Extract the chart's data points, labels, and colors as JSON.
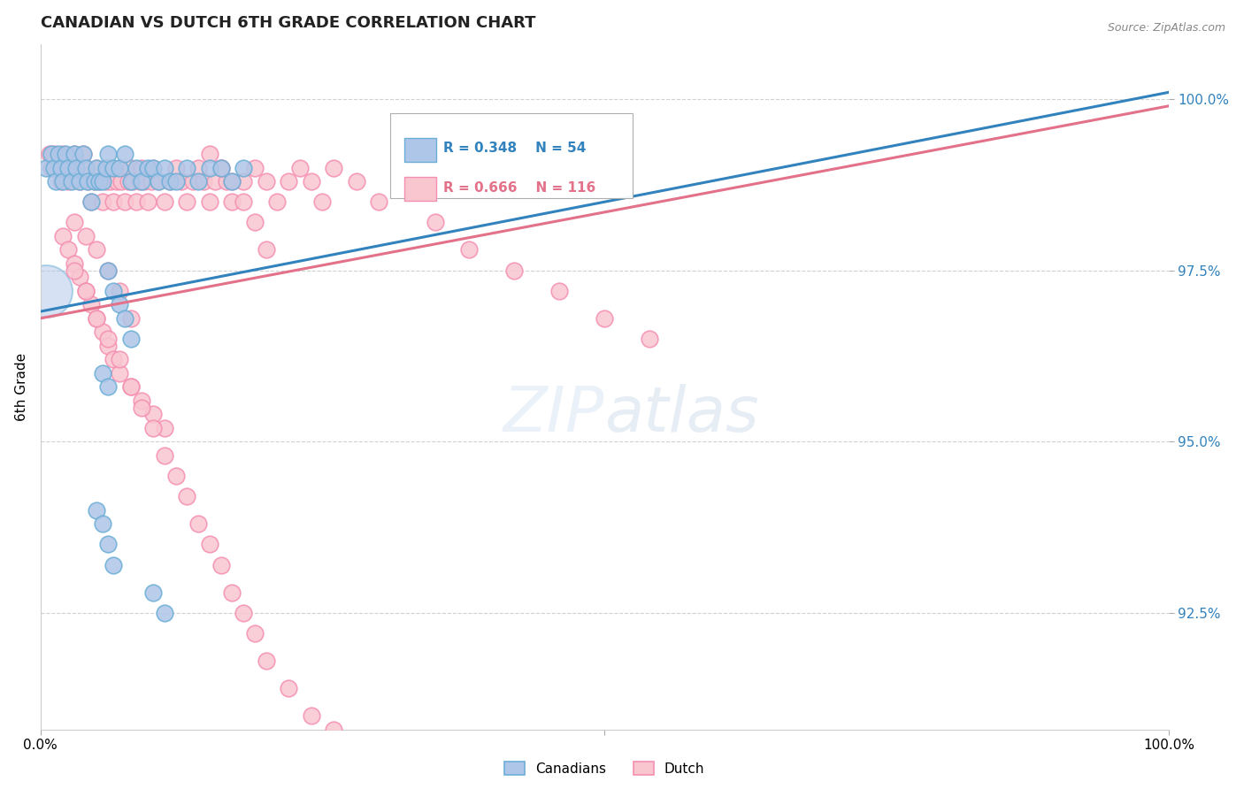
{
  "title": "CANADIAN VS DUTCH 6TH GRADE CORRELATION CHART",
  "source": "Source: ZipAtlas.com",
  "ylabel": "6th Grade",
  "xlim": [
    0.0,
    1.0
  ],
  "ylim": [
    0.908,
    1.008
  ],
  "yticks": [
    0.925,
    0.95,
    0.975,
    1.0
  ],
  "ytick_labels": [
    "92.5%",
    "95.0%",
    "97.5%",
    "100.0%"
  ],
  "xticks": [
    0.0,
    0.5,
    1.0
  ],
  "xtick_labels": [
    "0.0%",
    "",
    "100.0%"
  ],
  "canadian_color": "#aec6e8",
  "canadian_edge": "#6baed6",
  "dutch_color": "#f9c6d0",
  "dutch_edge": "#f48fb1",
  "canadian_line_color": "#3182bd",
  "dutch_line_color": "#e3718a",
  "canadian_R": 0.348,
  "canadian_N": 54,
  "dutch_R": 0.666,
  "dutch_N": 116,
  "legend_label_canadian": "Canadians",
  "legend_label_dutch": "Dutch",
  "canadians_x": [
    0.005,
    0.01,
    0.012,
    0.014,
    0.016,
    0.018,
    0.02,
    0.022,
    0.025,
    0.028,
    0.03,
    0.032,
    0.035,
    0.038,
    0.04,
    0.042,
    0.045,
    0.048,
    0.05,
    0.052,
    0.055,
    0.058,
    0.06,
    0.065,
    0.07,
    0.075,
    0.08,
    0.085,
    0.09,
    0.095,
    0.1,
    0.105,
    0.11,
    0.115,
    0.12,
    0.13,
    0.14,
    0.15,
    0.16,
    0.17,
    0.18,
    0.06,
    0.065,
    0.07,
    0.075,
    0.08,
    0.055,
    0.06,
    0.05,
    0.055,
    0.06,
    0.065,
    0.1,
    0.11
  ],
  "canadians_y": [
    0.99,
    0.992,
    0.99,
    0.988,
    0.992,
    0.99,
    0.988,
    0.992,
    0.99,
    0.988,
    0.992,
    0.99,
    0.988,
    0.992,
    0.99,
    0.988,
    0.985,
    0.988,
    0.99,
    0.988,
    0.988,
    0.99,
    0.992,
    0.99,
    0.99,
    0.992,
    0.988,
    0.99,
    0.988,
    0.99,
    0.99,
    0.988,
    0.99,
    0.988,
    0.988,
    0.99,
    0.988,
    0.99,
    0.99,
    0.988,
    0.99,
    0.975,
    0.972,
    0.97,
    0.968,
    0.965,
    0.96,
    0.958,
    0.94,
    0.938,
    0.935,
    0.932,
    0.928,
    0.925
  ],
  "canadians_size": [
    150,
    150,
    150,
    150,
    150,
    150,
    150,
    150,
    150,
    150,
    150,
    150,
    150,
    150,
    150,
    150,
    150,
    150,
    150,
    150,
    150,
    150,
    150,
    150,
    150,
    150,
    150,
    150,
    150,
    150,
    150,
    150,
    150,
    150,
    150,
    150,
    150,
    150,
    150,
    150,
    150,
    150,
    150,
    150,
    150,
    150,
    150,
    150,
    150,
    150,
    150,
    150,
    150,
    150
  ],
  "large_canadian_x": [
    0.005
  ],
  "large_canadian_y": [
    0.972
  ],
  "dutch_x": [
    0.008,
    0.01,
    0.012,
    0.015,
    0.018,
    0.02,
    0.022,
    0.025,
    0.028,
    0.03,
    0.032,
    0.035,
    0.038,
    0.04,
    0.042,
    0.045,
    0.048,
    0.05,
    0.052,
    0.055,
    0.058,
    0.06,
    0.062,
    0.065,
    0.068,
    0.07,
    0.072,
    0.075,
    0.078,
    0.08,
    0.082,
    0.085,
    0.088,
    0.09,
    0.092,
    0.095,
    0.098,
    0.1,
    0.105,
    0.11,
    0.115,
    0.12,
    0.125,
    0.13,
    0.135,
    0.14,
    0.145,
    0.15,
    0.155,
    0.16,
    0.165,
    0.17,
    0.18,
    0.19,
    0.2,
    0.21,
    0.22,
    0.23,
    0.24,
    0.25,
    0.02,
    0.025,
    0.03,
    0.035,
    0.04,
    0.045,
    0.05,
    0.055,
    0.06,
    0.065,
    0.07,
    0.08,
    0.09,
    0.1,
    0.11,
    0.03,
    0.04,
    0.05,
    0.06,
    0.07,
    0.08,
    0.09,
    0.1,
    0.11,
    0.12,
    0.13,
    0.14,
    0.15,
    0.16,
    0.17,
    0.18,
    0.19,
    0.2,
    0.22,
    0.24,
    0.26,
    0.03,
    0.04,
    0.05,
    0.06,
    0.07,
    0.08,
    0.15,
    0.16,
    0.17,
    0.18,
    0.19,
    0.2,
    0.26,
    0.28,
    0.3,
    0.35,
    0.38,
    0.42,
    0.46,
    0.5,
    0.54
  ],
  "dutch_y": [
    0.992,
    0.99,
    0.992,
    0.99,
    0.988,
    0.992,
    0.99,
    0.988,
    0.99,
    0.992,
    0.99,
    0.988,
    0.992,
    0.99,
    0.988,
    0.985,
    0.988,
    0.99,
    0.988,
    0.985,
    0.988,
    0.99,
    0.988,
    0.985,
    0.988,
    0.99,
    0.988,
    0.985,
    0.988,
    0.99,
    0.988,
    0.985,
    0.988,
    0.99,
    0.988,
    0.985,
    0.988,
    0.99,
    0.988,
    0.985,
    0.988,
    0.99,
    0.988,
    0.985,
    0.988,
    0.99,
    0.988,
    0.985,
    0.988,
    0.99,
    0.988,
    0.985,
    0.988,
    0.99,
    0.988,
    0.985,
    0.988,
    0.99,
    0.988,
    0.985,
    0.98,
    0.978,
    0.976,
    0.974,
    0.972,
    0.97,
    0.968,
    0.966,
    0.964,
    0.962,
    0.96,
    0.958,
    0.956,
    0.954,
    0.952,
    0.975,
    0.972,
    0.968,
    0.965,
    0.962,
    0.958,
    0.955,
    0.952,
    0.948,
    0.945,
    0.942,
    0.938,
    0.935,
    0.932,
    0.928,
    0.925,
    0.922,
    0.918,
    0.914,
    0.91,
    0.908,
    0.982,
    0.98,
    0.978,
    0.975,
    0.972,
    0.968,
    0.992,
    0.99,
    0.988,
    0.985,
    0.982,
    0.978,
    0.99,
    0.988,
    0.985,
    0.982,
    0.978,
    0.975,
    0.972,
    0.968,
    0.965
  ],
  "canadian_line_x": [
    0.0,
    1.0
  ],
  "canadian_line_y": [
    0.969,
    1.001
  ],
  "dutch_line_x": [
    0.0,
    1.0
  ],
  "dutch_line_y": [
    0.968,
    0.999
  ]
}
